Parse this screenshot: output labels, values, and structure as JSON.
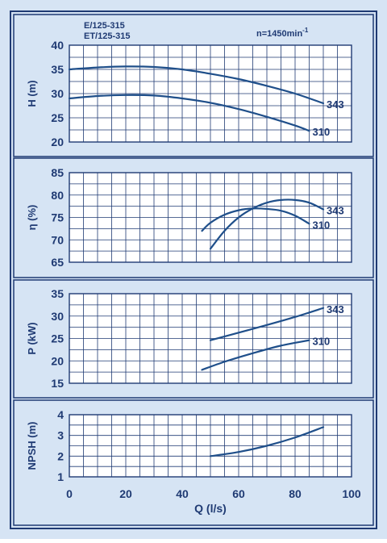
{
  "header": {
    "model_line1": "E/125-315",
    "model_line2": "ET/125-315",
    "speed_prefix": "n=1450min",
    "speed_sup": "-1"
  },
  "colors": {
    "background": "#d6e4f4",
    "frame": "#1f3a73",
    "grid": "#1f3a73",
    "curve": "#1f4f8a",
    "text": "#1f3a73"
  },
  "chart_data": [
    {
      "type": "line",
      "ylabel": "H (m)",
      "xlim": [
        0,
        100
      ],
      "ylim": [
        20,
        40
      ],
      "yticks": [
        20,
        25,
        30,
        35,
        40
      ],
      "grid": true,
      "series": [
        {
          "name": "343",
          "x": [
            0,
            10,
            20,
            30,
            40,
            50,
            60,
            70,
            80,
            90
          ],
          "y": [
            35.0,
            35.4,
            35.6,
            35.5,
            35.0,
            34.1,
            33.0,
            31.6,
            30.0,
            28.0
          ]
        },
        {
          "name": "310",
          "x": [
            0,
            10,
            20,
            30,
            40,
            50,
            60,
            70,
            80,
            85
          ],
          "y": [
            29.0,
            29.5,
            29.7,
            29.6,
            29.0,
            28.1,
            26.8,
            25.2,
            23.4,
            22.3
          ]
        }
      ]
    },
    {
      "type": "line",
      "ylabel": "η (%)",
      "xlim": [
        0,
        100
      ],
      "ylim": [
        65,
        85
      ],
      "yticks": [
        65,
        70,
        75,
        80,
        85
      ],
      "grid": true,
      "series": [
        {
          "name": "343",
          "x": [
            50,
            55,
            60,
            65,
            70,
            75,
            80,
            85,
            90
          ],
          "y": [
            68.0,
            72.0,
            75.0,
            77.0,
            78.3,
            78.9,
            78.9,
            78.3,
            76.8
          ]
        },
        {
          "name": "310",
          "x": [
            47,
            50,
            55,
            60,
            65,
            70,
            75,
            80,
            85
          ],
          "y": [
            72.0,
            73.8,
            75.6,
            76.6,
            77.0,
            76.9,
            76.5,
            75.4,
            73.6
          ]
        }
      ]
    },
    {
      "type": "line",
      "ylabel": "P (kW)",
      "xlim": [
        0,
        100
      ],
      "ylim": [
        15,
        35
      ],
      "yticks": [
        15,
        20,
        25,
        30,
        35
      ],
      "grid": true,
      "series": [
        {
          "name": "343",
          "x": [
            50,
            60,
            70,
            80,
            90
          ],
          "y": [
            24.6,
            26.3,
            28.0,
            29.8,
            31.8
          ]
        },
        {
          "name": "310",
          "x": [
            47,
            55,
            65,
            75,
            85
          ],
          "y": [
            18.0,
            19.8,
            21.7,
            23.4,
            24.6
          ]
        }
      ]
    },
    {
      "type": "line",
      "ylabel": "NPSH (m)",
      "xlabel": "Q (l/s)",
      "xlim": [
        0,
        100
      ],
      "ylim": [
        1,
        4
      ],
      "xticks": [
        0,
        20,
        40,
        60,
        80,
        100
      ],
      "yticks": [
        1,
        2,
        3,
        4
      ],
      "grid": true,
      "series": [
        {
          "x": [
            50,
            60,
            70,
            80,
            90
          ],
          "y": [
            2.0,
            2.2,
            2.5,
            2.9,
            3.4
          ]
        }
      ]
    }
  ]
}
